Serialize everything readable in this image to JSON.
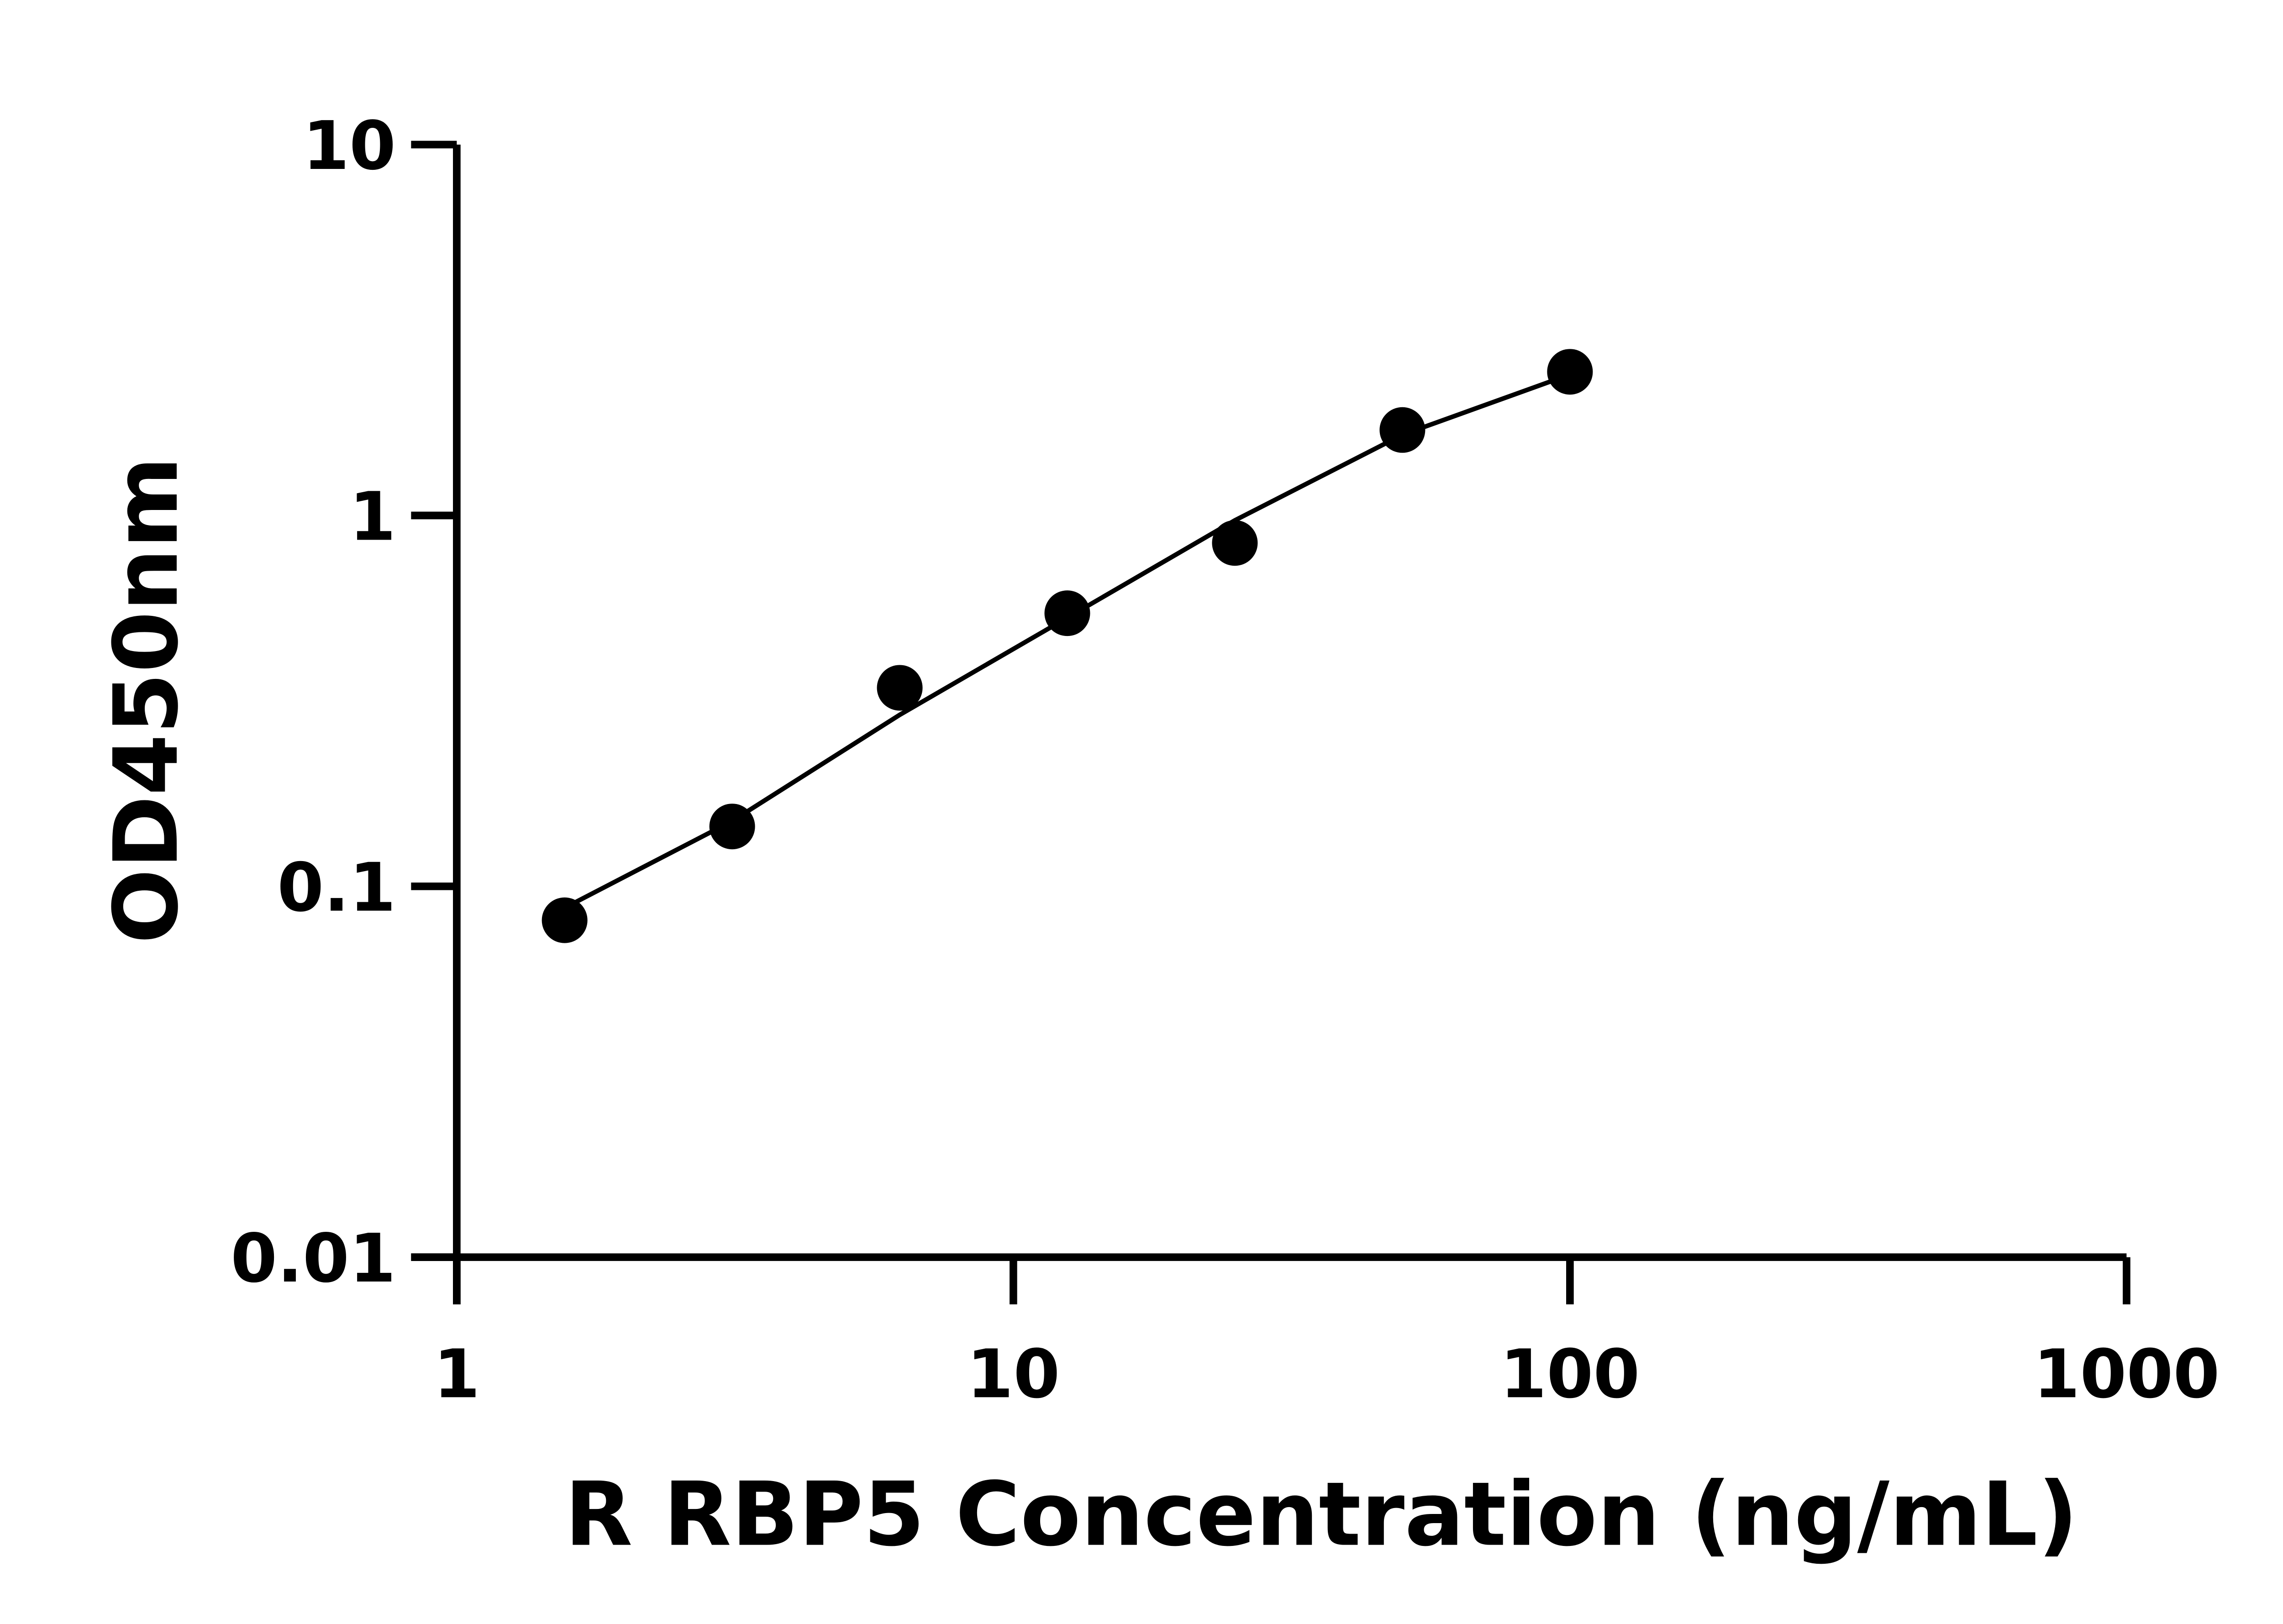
{
  "chart_data": {
    "type": "scatter",
    "x_label": "R RBP5 Concentration (ng/mL)",
    "y_label": "OD450nm",
    "xscale": "log",
    "yscale": "log",
    "xlim": [
      1,
      1000
    ],
    "ylim": [
      0.01,
      10
    ],
    "xticks": [
      1,
      10,
      100,
      1000
    ],
    "yticks": [
      0.01,
      0.1,
      1,
      10
    ],
    "series": [
      {
        "color": "#000000",
        "x": [
          1.5625,
          3.125,
          6.25,
          12.5,
          25,
          50,
          100
        ],
        "values": [
          0.081,
          0.145,
          0.343,
          0.545,
          0.843,
          1.7,
          2.44
        ]
      }
    ],
    "fit": {
      "color": "#000000",
      "x": [
        1.5625,
        3.125,
        6.25,
        12.5,
        25,
        50,
        100
      ],
      "values": [
        0.0875,
        0.15,
        0.29,
        0.53,
        0.97,
        1.65,
        2.4
      ]
    }
  }
}
